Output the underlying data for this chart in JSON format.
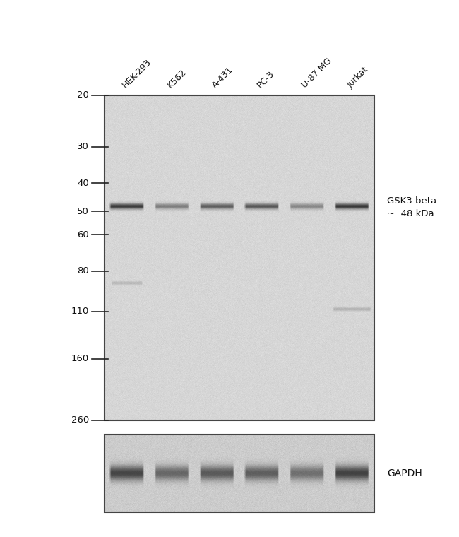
{
  "bg_color": "#ffffff",
  "main_blot_color": "#d4d4d4",
  "gapdh_blot_color": "#c8c8c8",
  "lane_labels": [
    "HEK-293",
    "K562",
    "A-431",
    "PC-3",
    "U-87 MG",
    "Jurkat"
  ],
  "mw_markers": [
    260,
    160,
    110,
    80,
    60,
    50,
    40,
    30,
    20
  ],
  "main_band_intensities": [
    0.88,
    0.5,
    0.68,
    0.72,
    0.45,
    0.9
  ],
  "gapdh_band_intensities": [
    0.8,
    0.6,
    0.68,
    0.65,
    0.55,
    0.82
  ],
  "annotation_line1": "GSK3 beta",
  "annotation_line2": "~  48 kDa",
  "gapdh_label": "GAPDH",
  "fig_width": 6.5,
  "fig_height": 7.6
}
